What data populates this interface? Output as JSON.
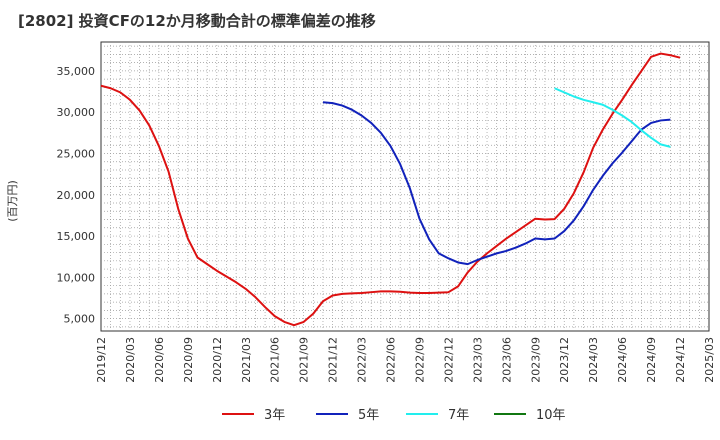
{
  "chart_data": {
    "type": "line",
    "title": "[2802]  投資CFの12か月移動合計の標準偏差の推移",
    "ylabel": "(百万円)",
    "xlabel": "",
    "ylim": [
      3500,
      38500
    ],
    "y_ticks": [
      5000,
      10000,
      15000,
      20000,
      25000,
      30000,
      35000
    ],
    "y_tick_labels": [
      "5,000",
      "10,000",
      "15,000",
      "20,000",
      "25,000",
      "30,000",
      "35,000"
    ],
    "x_tick_labels": [
      "2019/12",
      "2020/03",
      "2020/06",
      "2020/09",
      "2020/12",
      "2021/03",
      "2021/06",
      "2021/09",
      "2021/12",
      "2022/03",
      "2022/06",
      "2022/09",
      "2022/12",
      "2023/03",
      "2023/06",
      "2023/09",
      "2023/12",
      "2024/03",
      "2024/06",
      "2024/09",
      "2024/12",
      "2025/03"
    ],
    "grid": true,
    "legend_position": "bottom",
    "series": [
      {
        "name": "3年",
        "color": "#dd1111",
        "start": "2019/12",
        "values": [
          33200,
          32900,
          32400,
          31500,
          30200,
          28400,
          25900,
          22800,
          18300,
          14700,
          12400,
          11600,
          10800,
          10100,
          9400,
          8600,
          7600,
          6400,
          5300,
          4600,
          4200,
          4600,
          5600,
          7100,
          7800,
          8000,
          8050,
          8100,
          8200,
          8300,
          8300,
          8250,
          8150,
          8100,
          8100,
          8150,
          8200,
          8900,
          10600,
          11900,
          12900,
          13800,
          14700,
          15500,
          16300,
          17100,
          17000,
          17050,
          18300,
          20200,
          22700,
          25700,
          27900,
          29800,
          31500,
          33300,
          35000,
          36700,
          37100,
          36900,
          36600
        ]
      },
      {
        "name": "5年",
        "color": "#1122bb",
        "start": "2021/11",
        "values": [
          31200,
          31100,
          30800,
          30300,
          29600,
          28700,
          27500,
          25900,
          23700,
          20800,
          17100,
          14600,
          12900,
          12300,
          11800,
          11600,
          12100,
          12500,
          12900,
          13200,
          13600,
          14100,
          14700,
          14600,
          14700,
          15600,
          16900,
          18600,
          20600,
          22300,
          23800,
          25100,
          26500,
          27900,
          28700,
          29000,
          29100
        ]
      },
      {
        "name": "7年",
        "color": "#22eeee",
        "start": "2023/11",
        "values": [
          32900,
          32400,
          31900,
          31500,
          31200,
          30900,
          30300,
          29600,
          28800,
          27800,
          26900,
          26100,
          25800
        ]
      },
      {
        "name": "10年",
        "color": "#117711",
        "start": "2024/12",
        "values": []
      }
    ]
  }
}
